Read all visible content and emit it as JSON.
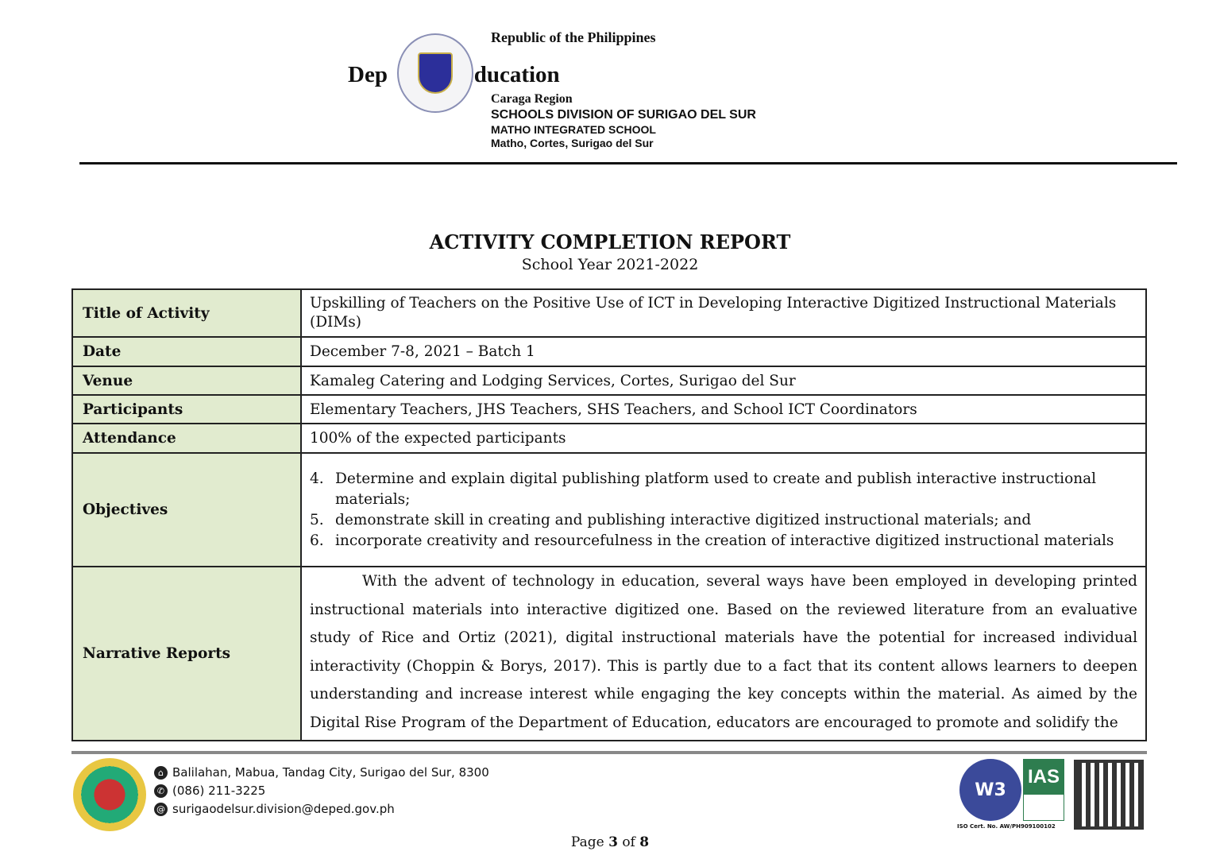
{
  "header": {
    "republic": "Republic of the Philippines",
    "dept_left": "Dep",
    "dept_right": "of Education",
    "region": "Caraga Region",
    "division": "SCHOOLS DIVISION OF SURIGAO DEL SUR",
    "school": "MATHO INTEGRATED SCHOOL",
    "address": "Matho, Cortes, Surigao del Sur"
  },
  "report": {
    "title": "ACTIVITY COMPLETION REPORT",
    "school_year": "School Year 2021-2022"
  },
  "table": {
    "title_label": "Title of Activity",
    "title_value": "Upskilling of Teachers on the Positive Use of ICT in Developing Interactive Digitized Instructional Materials (DIMs)",
    "date_label": "Date",
    "date_value": "December 7-8, 2021 – Batch 1",
    "venue_label": "Venue",
    "venue_value": "Kamaleg Catering and Lodging Services, Cortes, Surigao del Sur",
    "participants_label": "Participants",
    "participants_value": "Elementary Teachers, JHS Teachers, SHS Teachers, and School ICT Coordinators",
    "attendance_label": "Attendance",
    "attendance_value": "100% of the expected participants",
    "objectives_label": "Objectives",
    "objectives": [
      {
        "num": "4.",
        "text": "Determine and explain digital publishing platform used to create and publish interactive instructional materials;"
      },
      {
        "num": "5.",
        "text": "demonstrate skill in creating and publishing interactive digitized instructional materials; and"
      },
      {
        "num": "6.",
        "text": "incorporate creativity and resourcefulness in the creation of interactive digitized instructional materials"
      }
    ],
    "narrative_label": "Narrative Reports",
    "narrative_value": "With the advent of technology in education, several ways have been employed in developing printed instructional materials into interactive digitized one. Based on the reviewed literature from an evaluative study of Rice and Ortiz (2021), digital instructional materials have the potential for increased individual interactivity (Choppin & Borys, 2017). This is partly due to a fact that its content allows learners to deepen understanding and increase interest while engaging the key concepts within the material. As aimed by the Digital Rise Program of the Department of Education, educators are encouraged to promote and solidify the"
  },
  "footer": {
    "address": "Balilahan, Mabua, Tandag City, Surigao del Sur, 8300",
    "phone": "(086) 211-3225",
    "email": "surigaodelsur.division@deped.gov.ph",
    "w3": "W3",
    "ias": "IAS",
    "iso": "ISO Cert. No. AW/PH909100102",
    "page_prefix": "Page",
    "page_current": "3",
    "page_of": "of",
    "page_total": "8"
  }
}
